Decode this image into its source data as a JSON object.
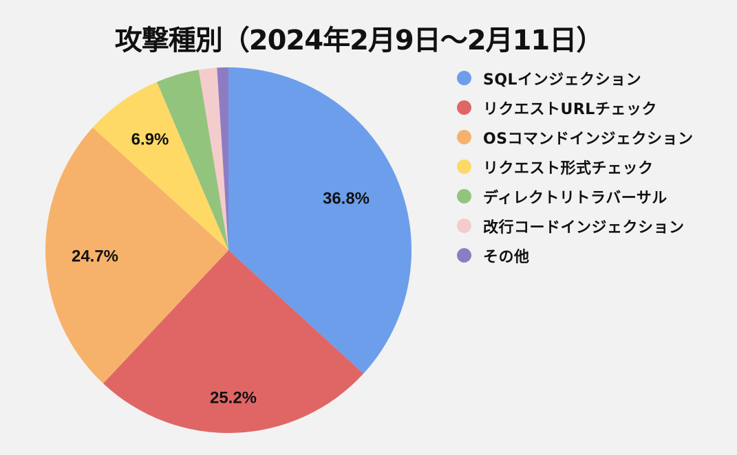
{
  "title": "攻撃種別（2024年2月9日～2月11日）",
  "chart_data": {
    "type": "pie",
    "title": "攻撃種別（2024年2月9日～2月11日）",
    "categories": [
      "SQLインジェクション",
      "リクエストURLチェック",
      "OSコマンドインジェクション",
      "リクエスト形式チェック",
      "ディレクトリトラバーサル",
      "改行コードインジェクション",
      "その他"
    ],
    "values": [
      36.8,
      25.2,
      24.7,
      6.9,
      3.8,
      1.6,
      1.0
    ],
    "labels_shown": [
      "36.8%",
      "25.2%",
      "24.7%",
      "6.9%",
      "",
      "",
      ""
    ],
    "colors": [
      "#6d9eeb",
      "#e06666",
      "#f6b26b",
      "#ffd966",
      "#93c47d",
      "#f4cccc",
      "#8e7cc3"
    ],
    "start_angle_deg": 0,
    "direction": "clockwise",
    "legend_position": "right",
    "unit": "%"
  },
  "legend": {
    "items": [
      {
        "label": "SQLインジェクション",
        "color": "#6d9eeb"
      },
      {
        "label": "リクエストURLチェック",
        "color": "#e06666"
      },
      {
        "label": "OSコマンドインジェクション",
        "color": "#f6b26b"
      },
      {
        "label": "リクエスト形式チェック",
        "color": "#ffd966"
      },
      {
        "label": "ディレクトリトラバーサル",
        "color": "#93c47d"
      },
      {
        "label": "改行コードインジェクション",
        "color": "#f4cccc"
      },
      {
        "label": "その他",
        "color": "#8e7cc3"
      }
    ]
  }
}
